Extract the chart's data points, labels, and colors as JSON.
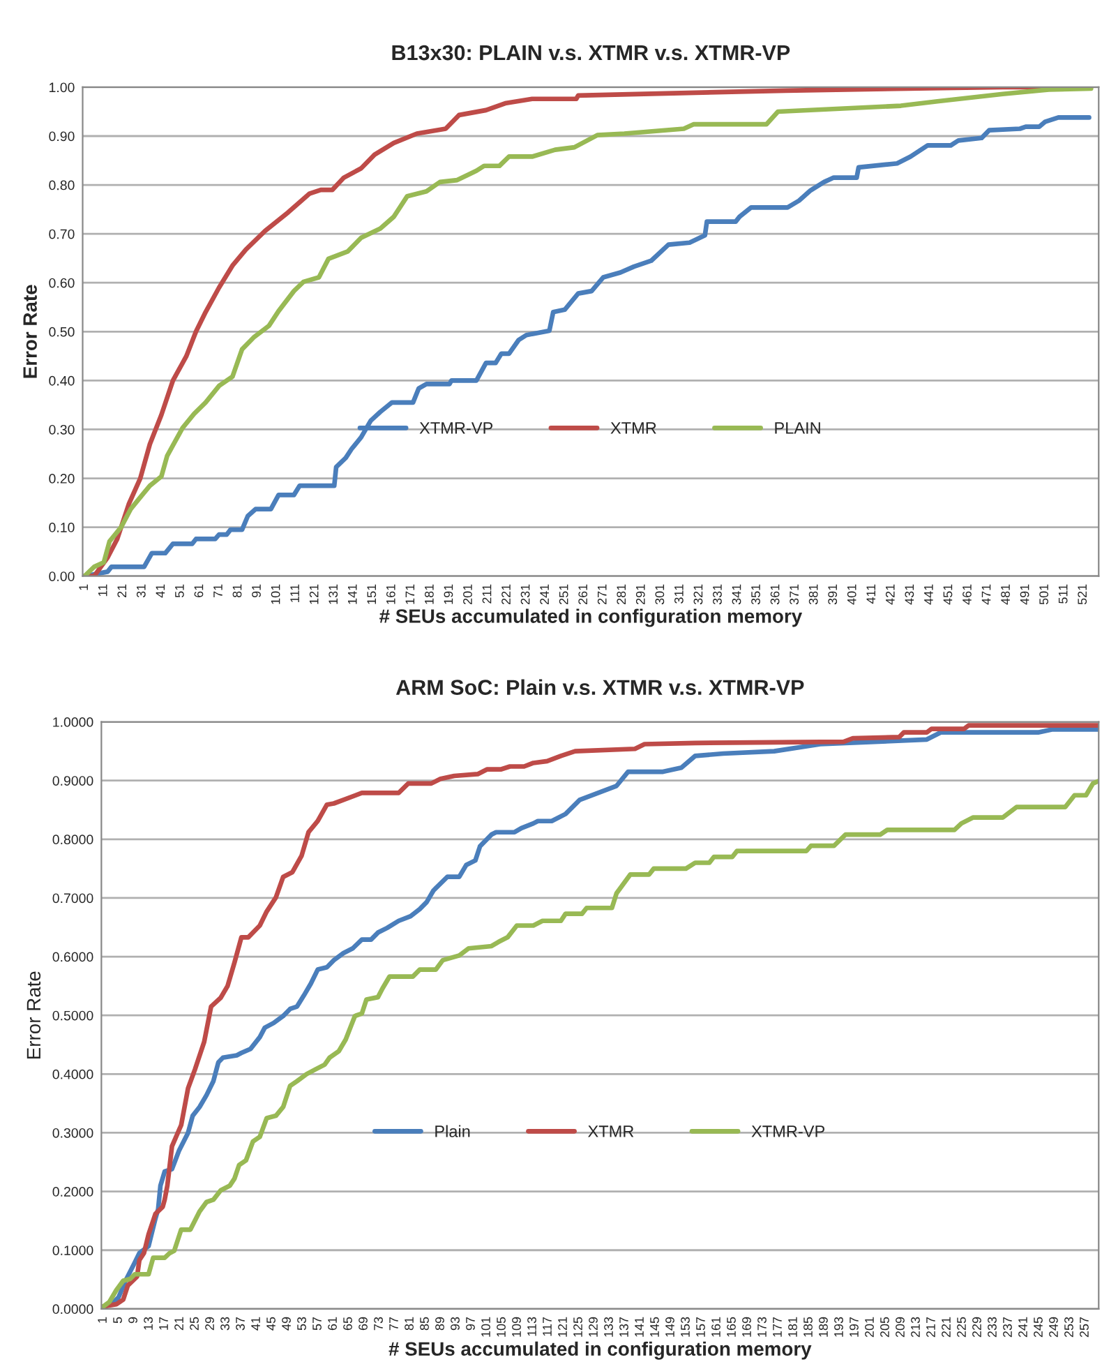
{
  "chart_data": [
    {
      "type": "line",
      "title": "B13x30: PLAIN v.s. XTMR v.s. XTMR-VP",
      "xlabel": "# SEUs accumulated in configuration memory",
      "ylabel": "Error Rate",
      "xlim": [
        0,
        529
      ],
      "xticks": [
        1,
        11,
        21,
        31,
        41,
        51,
        61,
        71,
        81,
        91,
        101,
        111,
        121,
        131,
        141,
        151,
        161,
        171,
        181,
        191,
        201,
        211,
        221,
        231,
        241,
        251,
        261,
        271,
        281,
        291,
        301,
        311,
        321,
        331,
        341,
        351,
        361,
        371,
        381,
        391,
        401,
        411,
        421,
        431,
        441,
        451,
        461,
        471,
        481,
        491,
        501,
        511,
        521
      ],
      "ylim": [
        0,
        1
      ],
      "yticks": [
        {
          "value": 0,
          "label": "0.00"
        },
        {
          "value": 0.1,
          "label": "0.10"
        },
        {
          "value": 0.2,
          "label": "0.20"
        },
        {
          "value": 0.3,
          "label": "0.30"
        },
        {
          "value": 0.4,
          "label": "0.40"
        },
        {
          "value": 0.5,
          "label": "0.50"
        },
        {
          "value": 0.6,
          "label": "0.60"
        },
        {
          "value": 0.7,
          "label": "0.70"
        },
        {
          "value": 0.8,
          "label": "0.80"
        },
        {
          "value": 0.9,
          "label": "0.90"
        },
        {
          "value": 1,
          "label": "1.00"
        }
      ],
      "grid": "y",
      "legend": "center",
      "line_style": "solid",
      "marker": "none",
      "series": [
        {
          "name": "XTMR-VP",
          "color": "#4a7ebb",
          "x": [
            1,
            13,
            15,
            32,
            36,
            43,
            47,
            57,
            59,
            69,
            71,
            75,
            77,
            83,
            86,
            90,
            98,
            102,
            110,
            113,
            131,
            132,
            137,
            140,
            145,
            150,
            155,
            161,
            172,
            175,
            179,
            191,
            192,
            205,
            210,
            215,
            218,
            222,
            227,
            231,
            243,
            245,
            251,
            254,
            258,
            265,
            271,
            280,
            287,
            296,
            305,
            316,
            324,
            325,
            340,
            342,
            348,
            367,
            373,
            379,
            386,
            391,
            403,
            404,
            424,
            431,
            440,
            452,
            456,
            468,
            472,
            488,
            491,
            498,
            501,
            508,
            524
          ],
          "values": [
            0,
            0.009,
            0.019,
            0.019,
            0.047,
            0.047,
            0.066,
            0.066,
            0.076,
            0.076,
            0.085,
            0.085,
            0.095,
            0.095,
            0.123,
            0.137,
            0.137,
            0.166,
            0.166,
            0.185,
            0.185,
            0.223,
            0.242,
            0.26,
            0.284,
            0.318,
            0.336,
            0.355,
            0.355,
            0.384,
            0.393,
            0.393,
            0.4,
            0.4,
            0.436,
            0.436,
            0.455,
            0.455,
            0.483,
            0.493,
            0.502,
            0.54,
            0.545,
            0.559,
            0.578,
            0.583,
            0.611,
            0.621,
            0.633,
            0.645,
            0.678,
            0.682,
            0.697,
            0.725,
            0.725,
            0.735,
            0.754,
            0.754,
            0.768,
            0.789,
            0.806,
            0.815,
            0.815,
            0.836,
            0.844,
            0.858,
            0.881,
            0.881,
            0.891,
            0.896,
            0.912,
            0.915,
            0.919,
            0.919,
            0.929,
            0.938,
            0.938
          ]
        },
        {
          "name": "XTMR",
          "color": "#be4b48",
          "x": [
            1,
            6,
            13,
            18,
            24,
            30,
            35,
            41,
            47,
            54,
            59,
            64,
            71,
            78,
            85,
            95,
            107,
            118,
            124,
            130,
            136,
            145,
            152,
            162,
            174,
            189,
            196,
            210,
            220,
            234,
            246,
            257,
            258,
            366,
            441,
            479,
            525
          ],
          "values": [
            0,
            0,
            0.038,
            0.076,
            0.147,
            0.2,
            0.27,
            0.33,
            0.4,
            0.45,
            0.5,
            0.54,
            0.59,
            0.635,
            0.668,
            0.706,
            0.744,
            0.782,
            0.79,
            0.79,
            0.815,
            0.834,
            0.862,
            0.886,
            0.905,
            0.915,
            0.943,
            0.953,
            0.967,
            0.976,
            0.976,
            0.976,
            0.983,
            0.993,
            0.998,
            1.0,
            1.0
          ]
        },
        {
          "name": "PLAIN",
          "color": "#98b954",
          "x": [
            1,
            6,
            11,
            14,
            20,
            25,
            31,
            35,
            41,
            44,
            52,
            58,
            64,
            71,
            78,
            83,
            89,
            97,
            102,
            110,
            115,
            123,
            128,
            138,
            145,
            155,
            162,
            169,
            179,
            186,
            195,
            205,
            209,
            217,
            222,
            234,
            246,
            256,
            268,
            282,
            313,
            318,
            356,
            362,
            426,
            445,
            479,
            503,
            525
          ],
          "values": [
            0,
            0.019,
            0.028,
            0.071,
            0.1,
            0.137,
            0.166,
            0.185,
            0.204,
            0.246,
            0.303,
            0.332,
            0.355,
            0.389,
            0.408,
            0.464,
            0.488,
            0.512,
            0.542,
            0.583,
            0.602,
            0.611,
            0.649,
            0.664,
            0.692,
            0.711,
            0.735,
            0.777,
            0.787,
            0.806,
            0.81,
            0.829,
            0.839,
            0.839,
            0.858,
            0.858,
            0.872,
            0.877,
            0.902,
            0.905,
            0.915,
            0.924,
            0.924,
            0.95,
            0.962,
            0.971,
            0.986,
            0.995,
            0.997
          ]
        }
      ]
    },
    {
      "type": "line",
      "title": "ARM SoC: Plain v.s. XTMR v.s. XTMR-VP",
      "xlabel": "# SEUs accumulated in configuration memory",
      "ylabel": "Error Rate",
      "xlim": [
        0.5,
        260.5
      ],
      "xticks": [
        1,
        5,
        9,
        13,
        17,
        21,
        25,
        29,
        33,
        37,
        41,
        45,
        49,
        53,
        57,
        61,
        65,
        69,
        73,
        77,
        81,
        85,
        89,
        93,
        97,
        101,
        105,
        109,
        113,
        117,
        121,
        125,
        129,
        133,
        137,
        141,
        145,
        149,
        153,
        157,
        161,
        165,
        169,
        173,
        177,
        181,
        185,
        189,
        193,
        197,
        201,
        205,
        209,
        213,
        217,
        221,
        225,
        229,
        233,
        237,
        241,
        245,
        249,
        253,
        257
      ],
      "ylim": [
        0,
        1
      ],
      "yticks": [
        {
          "value": 0,
          "label": "0.0000"
        },
        {
          "value": 0.1,
          "label": "0.1000"
        },
        {
          "value": 0.2,
          "label": "0.2000"
        },
        {
          "value": 0.3,
          "label": "0.3000"
        },
        {
          "value": 0.4,
          "label": "0.4000"
        },
        {
          "value": 0.5,
          "label": "0.5000"
        },
        {
          "value": 0.6,
          "label": "0.6000"
        },
        {
          "value": 0.7,
          "label": "0.7000"
        },
        {
          "value": 0.8,
          "label": "0.8000"
        },
        {
          "value": 0.9,
          "label": "0.9000"
        },
        {
          "value": 1,
          "label": "1.0000"
        }
      ],
      "grid": "y",
      "legend": "center",
      "line_style": "solid",
      "marker": "none",
      "series": [
        {
          "name": "Plain",
          "color": "#4a7ebb",
          "x": [
            1,
            3.2,
            5,
            6.8,
            9.2,
            10.4,
            12.8,
            14.6,
            15.3,
            15.9,
            17,
            18.9,
            20.7,
            23.1,
            24.3,
            26.1,
            27.9,
            29.7,
            31,
            32.2,
            35.8,
            37,
            39.4,
            41.8,
            43.1,
            45.4,
            47.9,
            49.7,
            51.5,
            53.3,
            55.1,
            56.9,
            59.3,
            61.1,
            63.6,
            66,
            68.4,
            70.8,
            72.6,
            75,
            78,
            81.1,
            83.5,
            85.3,
            87.1,
            90.7,
            93.8,
            95.6,
            98,
            99.2,
            102.2,
            103.4,
            108.2,
            110,
            113.1,
            114.3,
            117.9,
            121.5,
            125.2,
            130,
            134.8,
            137.8,
            146.9,
            151.7,
            155.3,
            162.6,
            175.9,
            187.9,
            215.7,
            219.3,
            244.7,
            248.3,
            260.4
          ],
          "values": [
            0.004,
            0.008,
            0.02,
            0.048,
            0.079,
            0.095,
            0.107,
            0.154,
            0.17,
            0.21,
            0.234,
            0.238,
            0.269,
            0.3,
            0.329,
            0.344,
            0.364,
            0.388,
            0.42,
            0.428,
            0.432,
            0.436,
            0.443,
            0.463,
            0.479,
            0.487,
            0.499,
            0.511,
            0.515,
            0.534,
            0.554,
            0.578,
            0.582,
            0.594,
            0.606,
            0.614,
            0.629,
            0.629,
            0.641,
            0.649,
            0.661,
            0.669,
            0.681,
            0.693,
            0.713,
            0.736,
            0.736,
            0.756,
            0.764,
            0.788,
            0.808,
            0.812,
            0.812,
            0.819,
            0.827,
            0.831,
            0.831,
            0.843,
            0.867,
            0.879,
            0.891,
            0.915,
            0.915,
            0.922,
            0.942,
            0.946,
            0.95,
            0.962,
            0.97,
            0.982,
            0.982,
            0.987,
            0.987
          ]
        },
        {
          "name": "XTMR",
          "color": "#be4b48",
          "x": [
            1,
            4.4,
            6.2,
            7.4,
            9.8,
            10.4,
            11.6,
            12.8,
            14.6,
            16.5,
            17,
            17.7,
            18.9,
            21.3,
            23.1,
            24.9,
            27.3,
            29.1,
            31.6,
            33.4,
            35.2,
            37,
            38.8,
            41.8,
            43.6,
            46,
            47.9,
            50.3,
            52.7,
            54.5,
            56.9,
            59.3,
            61.1,
            63.6,
            68.4,
            78,
            80.5,
            86.5,
            88.9,
            92.5,
            98.6,
            101,
            104.6,
            107,
            110.7,
            113.1,
            116.7,
            120.3,
            124,
            139.6,
            142.1,
            155.3,
            194,
            196.4,
            208.5,
            209.7,
            215.7,
            216.9,
            225.4,
            226.6,
            260.4
          ],
          "values": [
            0.004,
            0.008,
            0.016,
            0.04,
            0.055,
            0.083,
            0.095,
            0.127,
            0.162,
            0.174,
            0.186,
            0.21,
            0.277,
            0.313,
            0.376,
            0.408,
            0.455,
            0.515,
            0.53,
            0.55,
            0.59,
            0.633,
            0.633,
            0.653,
            0.677,
            0.701,
            0.736,
            0.744,
            0.772,
            0.812,
            0.831,
            0.859,
            0.861,
            0.867,
            0.879,
            0.879,
            0.895,
            0.895,
            0.903,
            0.908,
            0.911,
            0.919,
            0.919,
            0.924,
            0.924,
            0.93,
            0.933,
            0.942,
            0.95,
            0.954,
            0.962,
            0.964,
            0.966,
            0.972,
            0.974,
            0.982,
            0.982,
            0.988,
            0.988,
            0.994,
            0.994
          ]
        },
        {
          "name": "XTMR-VP",
          "color": "#98b954",
          "x": [
            1,
            2.6,
            4.4,
            6.2,
            8,
            9.2,
            12.8,
            14,
            17,
            18.3,
            19.5,
            21.3,
            23.7,
            26.1,
            27.9,
            29.7,
            31.6,
            34,
            35.2,
            36.4,
            38.2,
            40,
            41.8,
            43.6,
            46,
            47.9,
            49.7,
            51.5,
            54,
            56.3,
            58.7,
            60,
            62.4,
            64.2,
            66.6,
            68.4,
            69.6,
            72.6,
            73.8,
            75.6,
            81.7,
            83.5,
            87.7,
            89.5,
            93.8,
            96.2,
            102.2,
            104,
            106.4,
            108.8,
            113.1,
            115.5,
            120.3,
            121.5,
            125.8,
            127,
            133.6,
            134.8,
            138.4,
            143.3,
            144.5,
            152.9,
            155.3,
            159,
            160.2,
            165,
            166.2,
            184.3,
            185.5,
            191.5,
            194.5,
            203.6,
            205.4,
            222.9,
            224.7,
            227.7,
            235.5,
            239.1,
            251.8,
            254.2,
            257.2,
            259,
            260.4
          ],
          "values": [
            0.004,
            0.012,
            0.032,
            0.048,
            0.051,
            0.059,
            0.059,
            0.087,
            0.087,
            0.095,
            0.099,
            0.135,
            0.135,
            0.166,
            0.182,
            0.186,
            0.202,
            0.21,
            0.222,
            0.245,
            0.253,
            0.285,
            0.293,
            0.325,
            0.329,
            0.344,
            0.38,
            0.388,
            0.4,
            0.408,
            0.416,
            0.428,
            0.439,
            0.459,
            0.499,
            0.503,
            0.527,
            0.531,
            0.546,
            0.566,
            0.566,
            0.578,
            0.578,
            0.594,
            0.602,
            0.614,
            0.618,
            0.625,
            0.633,
            0.653,
            0.653,
            0.661,
            0.661,
            0.673,
            0.673,
            0.683,
            0.683,
            0.708,
            0.74,
            0.74,
            0.75,
            0.75,
            0.76,
            0.76,
            0.77,
            0.77,
            0.78,
            0.78,
            0.789,
            0.789,
            0.808,
            0.808,
            0.816,
            0.816,
            0.827,
            0.837,
            0.837,
            0.855,
            0.855,
            0.875,
            0.875,
            0.895,
            0.899
          ]
        }
      ]
    }
  ]
}
